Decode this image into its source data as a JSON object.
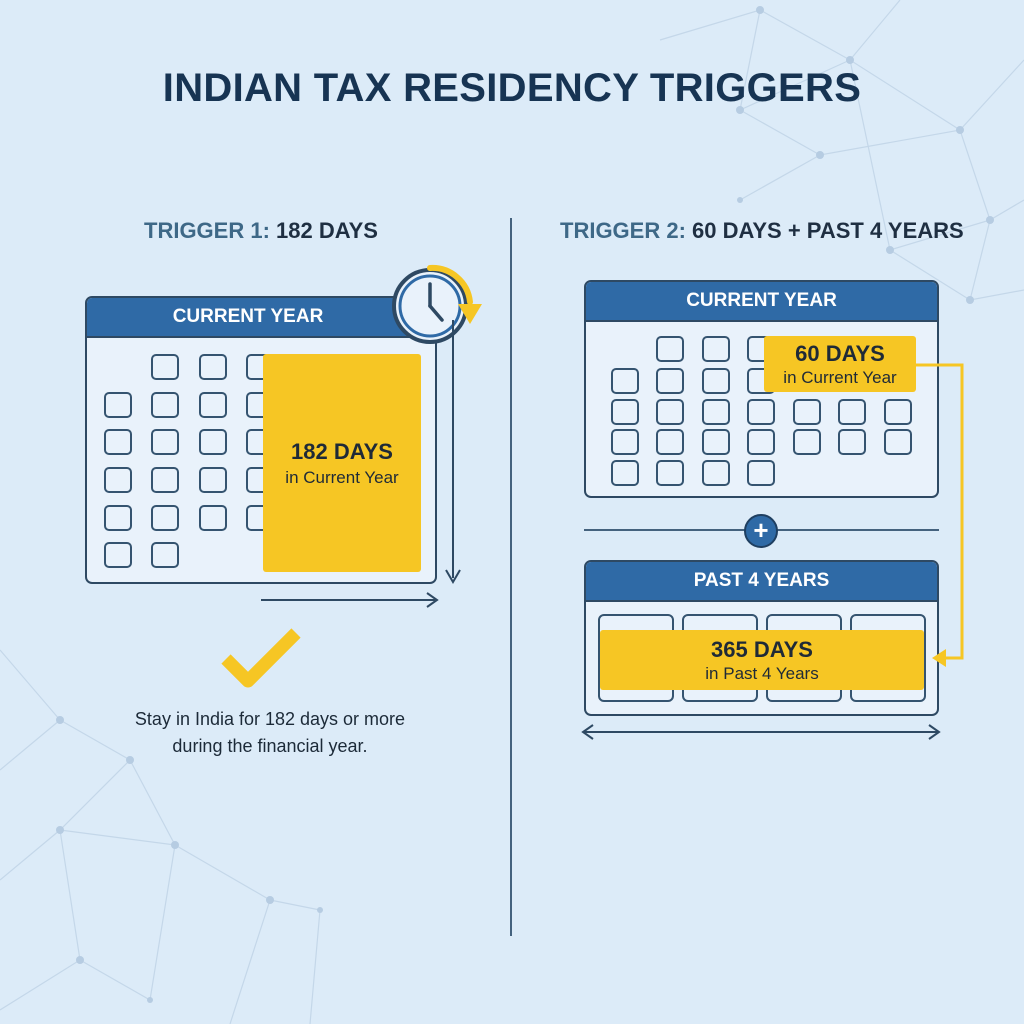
{
  "title": "INDIAN TAX RESIDENCY TRIGGERS",
  "trigger1": {
    "label_prefix": "TRIGGER 1:",
    "label_main": "182 DAYS",
    "calendar_header": "CURRENT YEAR",
    "highlight_days": "182 DAYS",
    "highlight_sub": "in Current Year",
    "description_line1": "Stay in India for 182 days or more",
    "description_line2": "during the financial year."
  },
  "trigger2": {
    "label_prefix": "TRIGGER 2:",
    "label_main": "60 DAYS + PAST 4 YEARS",
    "calendar_header": "CURRENT YEAR",
    "highlight_days": "60 DAYS",
    "highlight_sub": "in Current Year",
    "plus_symbol": "+",
    "past_header": "PAST 4 YEARS",
    "past_days": "365 DAYS",
    "past_sub": "in Past 4 Years"
  },
  "colors": {
    "background": "#dcebf8",
    "header_blue": "#2f6aa6",
    "highlight_yellow": "#f6c624",
    "outline": "#2e4963"
  },
  "icons": [
    "clock-icon",
    "checkmark-icon",
    "plus-icon",
    "arrow-icon"
  ]
}
